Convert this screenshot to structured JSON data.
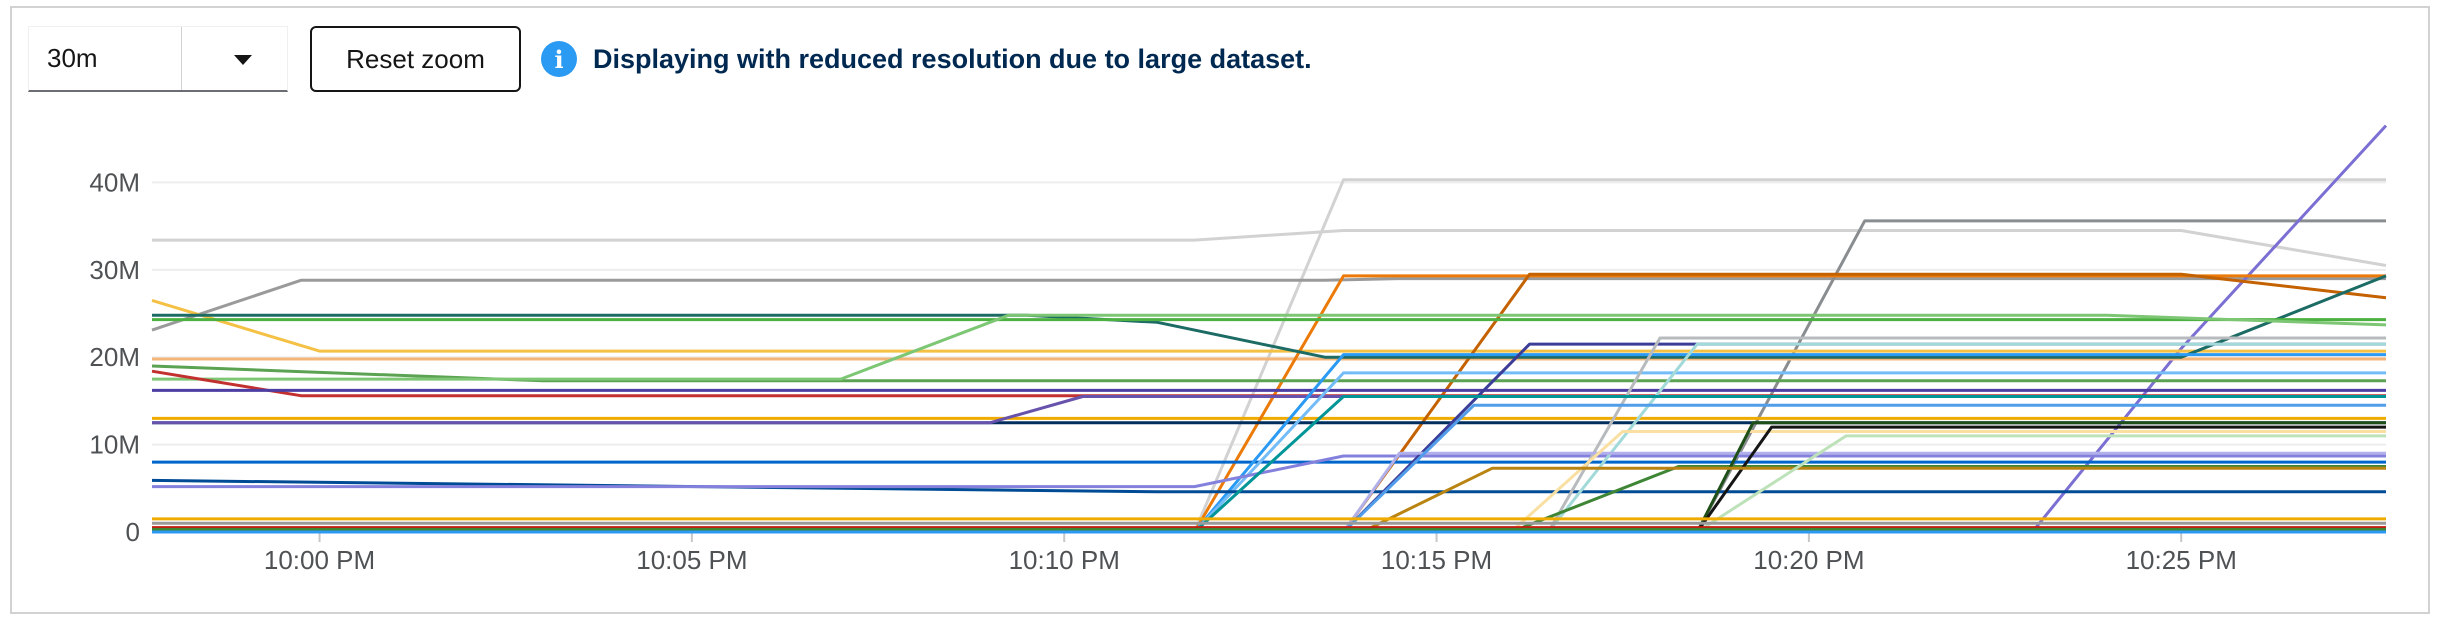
{
  "toolbar": {
    "range_value": "30m",
    "reset_label": "Reset zoom",
    "info_message": "Displaying with reduced resolution due to large dataset."
  },
  "icons": {
    "dropdown": "caret-down-icon",
    "info": "info-circle-icon"
  },
  "chart_data": {
    "type": "line",
    "xlim": [
      "9:57:45 PM",
      "10:27:45 PM"
    ],
    "ylim": [
      0,
      46000000
    ],
    "x_ticks": [
      "10:00 PM",
      "10:05 PM",
      "10:10 PM",
      "10:15 PM",
      "10:20 PM",
      "10:25 PM"
    ],
    "y_ticks": [
      {
        "value": 0,
        "label": "0"
      },
      {
        "value": 10000000,
        "label": "10M"
      },
      {
        "value": 20000000,
        "label": "20M"
      },
      {
        "value": 30000000,
        "label": "30M"
      },
      {
        "value": 40000000,
        "label": "40M"
      }
    ],
    "grid": "horizontal",
    "series": [
      {
        "color": "#d2d2d2",
        "points": [
          [
            "9:57:45 PM",
            33.4
          ],
          [
            "10:11:45 PM",
            33.4
          ],
          [
            "10:13:45 PM",
            34.5
          ],
          [
            "10:25:00 PM",
            34.5
          ],
          [
            "10:27:45 PM",
            30.5
          ]
        ]
      },
      {
        "color": "#d2d2d2",
        "points": [
          [
            "9:57:45 PM",
            0
          ],
          [
            "10:11:45 PM",
            0
          ],
          [
            "10:13:45 PM",
            40.3
          ],
          [
            "10:27:45 PM",
            40.3
          ]
        ]
      },
      {
        "color": "#9a9a9a",
        "points": [
          [
            "9:57:45 PM",
            23.1
          ],
          [
            "9:59:45 PM",
            28.8
          ],
          [
            "10:13:30 PM",
            28.8
          ],
          [
            "10:14:30 PM",
            29.0
          ],
          [
            "10:27:45 PM",
            29.0
          ]
        ]
      },
      {
        "color": "#8a8d90",
        "points": [
          [
            "9:57:45 PM",
            0
          ],
          [
            "10:18:30 PM",
            0
          ],
          [
            "10:20:45 PM",
            35.6
          ],
          [
            "10:27:45 PM",
            35.6
          ]
        ]
      },
      {
        "color": "#7b6fd3",
        "points": [
          [
            "9:57:45 PM",
            0
          ],
          [
            "10:23:00 PM",
            0
          ],
          [
            "10:25:00 PM",
            21.0
          ],
          [
            "10:27:45 PM",
            46.5
          ]
        ]
      },
      {
        "color": "#f4c145",
        "points": [
          [
            "9:57:45 PM",
            26.5
          ],
          [
            "10:00:00 PM",
            20.7
          ],
          [
            "10:27:45 PM",
            20.7
          ]
        ]
      },
      {
        "color": "#f0ab00",
        "points": [
          [
            "9:57:45 PM",
            13.0
          ],
          [
            "10:27:45 PM",
            13.0
          ]
        ]
      },
      {
        "color": "#f4b678",
        "points": [
          [
            "9:57:45 PM",
            19.8
          ],
          [
            "10:27:45 PM",
            19.8
          ]
        ]
      },
      {
        "color": "#ec7a08",
        "points": [
          [
            "9:57:45 PM",
            0
          ],
          [
            "10:11:45 PM",
            0
          ],
          [
            "10:13:45 PM",
            29.3
          ],
          [
            "10:27:45 PM",
            29.3
          ]
        ]
      },
      {
        "color": "#c46100",
        "points": [
          [
            "9:57:45 PM",
            0
          ],
          [
            "10:13:45 PM",
            0
          ],
          [
            "10:16:15 PM",
            29.5
          ],
          [
            "10:25:00 PM",
            29.5
          ],
          [
            "10:27:45 PM",
            26.8
          ]
        ]
      },
      {
        "color": "#1c6b64",
        "points": [
          [
            "9:57:45 PM",
            24.8
          ],
          [
            "10:09:30 PM",
            24.8
          ],
          [
            "10:11:15 PM",
            24.0
          ],
          [
            "10:13:30 PM",
            20.0
          ],
          [
            "10:25:00 PM",
            20.0
          ],
          [
            "10:27:45 PM",
            29.3
          ]
        ]
      },
      {
        "color": "#4cb140",
        "points": [
          [
            "9:57:45 PM",
            24.3
          ],
          [
            "10:27:45 PM",
            24.3
          ]
        ]
      },
      {
        "color": "#5ba352",
        "points": [
          [
            "9:57:45 PM",
            19.0
          ],
          [
            "10:03:00 PM",
            17.3
          ],
          [
            "10:27:45 PM",
            17.3
          ]
        ]
      },
      {
        "color": "#7cc674",
        "points": [
          [
            "9:57:45 PM",
            17.5
          ],
          [
            "10:07:00 PM",
            17.5
          ],
          [
            "10:09:15 PM",
            24.8
          ],
          [
            "10:24:00 PM",
            24.8
          ],
          [
            "10:27:45 PM",
            23.7
          ]
        ]
      },
      {
        "color": "#c23030",
        "points": [
          [
            "9:57:45 PM",
            18.4
          ],
          [
            "9:59:45 PM",
            15.6
          ],
          [
            "10:27:45 PM",
            15.6
          ]
        ]
      },
      {
        "color": "#4d3ea3",
        "points": [
          [
            "9:57:45 PM",
            16.2
          ],
          [
            "10:27:45 PM",
            16.2
          ]
        ]
      },
      {
        "color": "#002f5d",
        "points": [
          [
            "9:57:45 PM",
            12.5
          ],
          [
            "10:27:45 PM",
            12.5
          ]
        ]
      },
      {
        "color": "#6753ac",
        "points": [
          [
            "9:57:45 PM",
            12.5
          ],
          [
            "10:09:00 PM",
            12.5
          ],
          [
            "10:10:15 PM",
            15.5
          ],
          [
            "10:27:45 PM",
            15.5
          ]
        ]
      },
      {
        "color": "#0066cc",
        "points": [
          [
            "9:57:45 PM",
            8.0
          ],
          [
            "10:27:45 PM",
            8.0
          ]
        ]
      },
      {
        "color": "#2b9af3",
        "points": [
          [
            "9:57:45 PM",
            0
          ],
          [
            "10:11:45 PM",
            0
          ],
          [
            "10:13:45 PM",
            20.3
          ],
          [
            "10:27:45 PM",
            20.3
          ]
        ]
      },
      {
        "color": "#73bcf7",
        "points": [
          [
            "9:57:45 PM",
            0
          ],
          [
            "10:11:45 PM",
            0
          ],
          [
            "10:13:45 PM",
            18.2
          ],
          [
            "10:27:45 PM",
            18.2
          ]
        ]
      },
      {
        "color": "#004b95",
        "points": [
          [
            "9:57:45 PM",
            5.9
          ],
          [
            "10:11:15 PM",
            4.6
          ],
          [
            "10:27:45 PM",
            4.6
          ]
        ]
      },
      {
        "color": "#8481dd",
        "points": [
          [
            "9:57:45 PM",
            5.2
          ],
          [
            "10:11:45 PM",
            5.2
          ],
          [
            "10:13:45 PM",
            8.7
          ],
          [
            "10:27:45 PM",
            8.7
          ]
        ]
      },
      {
        "color": "#3c3d99",
        "points": [
          [
            "9:57:45 PM",
            0
          ],
          [
            "10:13:45 PM",
            0
          ],
          [
            "10:16:15 PM",
            21.5
          ],
          [
            "10:27:45 PM",
            21.5
          ]
        ]
      },
      {
        "color": "#a2d9d9",
        "points": [
          [
            "9:57:45 PM",
            0
          ],
          [
            "10:16:30 PM",
            0
          ],
          [
            "10:18:30 PM",
            21.5
          ],
          [
            "10:27:45 PM",
            21.5
          ]
        ]
      },
      {
        "color": "#b8bbbe",
        "points": [
          [
            "9:57:45 PM",
            0
          ],
          [
            "10:16:30 PM",
            0
          ],
          [
            "10:18:00 PM",
            22.2
          ],
          [
            "10:27:45 PM",
            22.2
          ]
        ]
      },
      {
        "color": "#b2b0ea",
        "points": [
          [
            "9:57:45 PM",
            0
          ],
          [
            "10:13:45 PM",
            0
          ],
          [
            "10:14:30 PM",
            9.0
          ],
          [
            "10:27:45 PM",
            9.0
          ]
        ]
      },
      {
        "color": "#f9e0a2",
        "points": [
          [
            "9:57:45 PM",
            0
          ],
          [
            "10:16:00 PM",
            0
          ],
          [
            "10:17:30 PM",
            11.5
          ],
          [
            "10:27:45 PM",
            11.5
          ]
        ]
      },
      {
        "color": "#3e8635",
        "points": [
          [
            "9:57:45 PM",
            0
          ],
          [
            "10:16:00 PM",
            0
          ],
          [
            "10:18:15 PM",
            7.5
          ],
          [
            "10:27:45 PM",
            7.5
          ]
        ]
      },
      {
        "color": "#1e4f18",
        "points": [
          [
            "9:57:45 PM",
            0
          ],
          [
            "10:18:30 PM",
            0
          ],
          [
            "10:19:15 PM",
            12.5
          ],
          [
            "10:27:45 PM",
            12.5
          ]
        ]
      },
      {
        "color": "#151515",
        "points": [
          [
            "9:57:45 PM",
            0
          ],
          [
            "10:18:30 PM",
            0
          ],
          [
            "10:19:30 PM",
            12.0
          ],
          [
            "10:27:45 PM",
            12.0
          ]
        ]
      },
      {
        "color": "#b98412",
        "points": [
          [
            "9:57:45 PM",
            0
          ],
          [
            "10:14:00 PM",
            0
          ],
          [
            "10:15:45 PM",
            7.3
          ],
          [
            "10:27:45 PM",
            7.3
          ]
        ]
      },
      {
        "color": "#bde2b9",
        "points": [
          [
            "9:57:45 PM",
            0
          ],
          [
            "10:18:30 PM",
            0
          ],
          [
            "10:20:30 PM",
            11.0
          ],
          [
            "10:27:45 PM",
            11.0
          ]
        ]
      },
      {
        "color": "#009596",
        "points": [
          [
            "9:57:45 PM",
            0
          ],
          [
            "10:11:45 PM",
            0
          ],
          [
            "10:13:45 PM",
            15.5
          ],
          [
            "10:27:45 PM",
            15.5
          ]
        ]
      },
      {
        "color": "#519de9",
        "points": [
          [
            "9:57:45 PM",
            0
          ],
          [
            "10:13:45 PM",
            0
          ],
          [
            "10:15:30 PM",
            14.5
          ],
          [
            "10:27:45 PM",
            14.5
          ]
        ]
      },
      {
        "color": "#f0ab00",
        "points": [
          [
            "9:57:45 PM",
            1.5
          ],
          [
            "10:27:45 PM",
            1.5
          ]
        ]
      },
      {
        "color": "#9a9a9a",
        "points": [
          [
            "9:57:45 PM",
            1.0
          ],
          [
            "10:27:45 PM",
            1.0
          ]
        ]
      },
      {
        "color": "#c9190b",
        "points": [
          [
            "9:57:45 PM",
            0.5
          ],
          [
            "10:27:45 PM",
            0.5
          ]
        ]
      },
      {
        "color": "#3e8635",
        "points": [
          [
            "9:57:45 PM",
            0.3
          ],
          [
            "10:27:45 PM",
            0.3
          ]
        ]
      },
      {
        "color": "#2b9af3",
        "points": [
          [
            "9:57:45 PM",
            0.0
          ],
          [
            "10:27:45 PM",
            0.0
          ]
        ]
      }
    ]
  }
}
